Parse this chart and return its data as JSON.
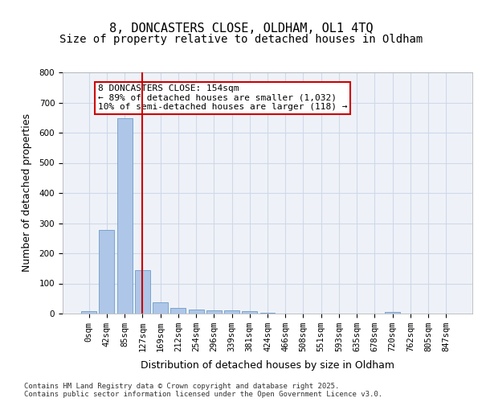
{
  "title_line1": "8, DONCASTERS CLOSE, OLDHAM, OL1 4TQ",
  "title_line2": "Size of property relative to detached houses in Oldham",
  "xlabel": "Distribution of detached houses by size in Oldham",
  "ylabel": "Number of detached properties",
  "categories": [
    "0sqm",
    "42sqm",
    "85sqm",
    "127sqm",
    "169sqm",
    "212sqm",
    "254sqm",
    "296sqm",
    "339sqm",
    "381sqm",
    "424sqm",
    "466sqm",
    "508sqm",
    "551sqm",
    "593sqm",
    "635sqm",
    "678sqm",
    "720sqm",
    "762sqm",
    "805sqm",
    "847sqm"
  ],
  "values": [
    7,
    278,
    648,
    143,
    38,
    18,
    13,
    11,
    11,
    8,
    3,
    1,
    0,
    0,
    0,
    0,
    0,
    5,
    0,
    0,
    0
  ],
  "bar_color": "#aec6e8",
  "bar_edge_color": "#5a8fc0",
  "vline_x": 3,
  "vline_color": "#cc0000",
  "annotation_text": "8 DONCASTERS CLOSE: 154sqm\n← 89% of detached houses are smaller (1,032)\n10% of semi-detached houses are larger (118) →",
  "annotation_box_color": "#cc0000",
  "ylim": [
    0,
    800
  ],
  "yticks": [
    0,
    100,
    200,
    300,
    400,
    500,
    600,
    700,
    800
  ],
  "grid_color": "#d0d8e8",
  "background_color": "#eef2f8",
  "footer_text": "Contains HM Land Registry data © Crown copyright and database right 2025.\nContains public sector information licensed under the Open Government Licence v3.0.",
  "title_fontsize": 11,
  "subtitle_fontsize": 10,
  "axis_label_fontsize": 9,
  "tick_fontsize": 7.5,
  "annotation_fontsize": 8
}
